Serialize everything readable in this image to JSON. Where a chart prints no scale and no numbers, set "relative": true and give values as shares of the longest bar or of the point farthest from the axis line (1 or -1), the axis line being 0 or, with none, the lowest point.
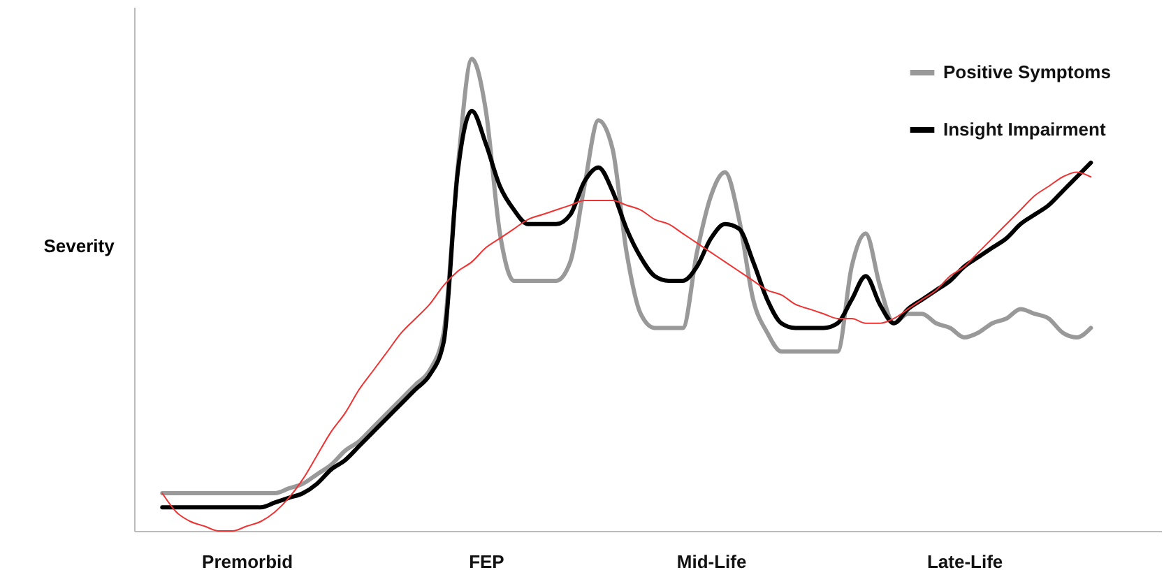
{
  "chart_data": {
    "type": "line",
    "relative": true,
    "ylabel": "Severity",
    "categories": [
      null,
      null,
      null,
      null,
      null,
      null,
      null,
      null,
      "Premorbid",
      null,
      null,
      null,
      null,
      null,
      null,
      null,
      null,
      null,
      null,
      null,
      null,
      null,
      null,
      null,
      null,
      "FEP",
      null,
      null,
      null,
      null,
      null,
      null,
      null,
      null,
      null,
      null,
      null,
      null,
      null,
      null,
      null,
      "Mid-Life",
      null,
      null,
      null,
      null,
      null,
      null,
      null,
      null,
      null,
      null,
      null,
      null,
      null,
      null,
      null,
      null,
      null,
      "Late-Life",
      null,
      null,
      null,
      null,
      null,
      null,
      null,
      null,
      null,
      null,
      null,
      null,
      null,
      null
    ],
    "tick_labels": "x",
    "legend": "top right",
    "series": [
      {
        "name": "Positive Symptoms",
        "color": "#999999",
        "values": [
          null,
          null,
          0.08,
          0.08,
          0.08,
          0.08,
          0.08,
          0.08,
          0.08,
          0.08,
          0.08,
          0.09,
          0.1,
          0.12,
          0.14,
          0.17,
          0.19,
          0.22,
          0.25,
          0.28,
          0.31,
          0.34,
          0.42,
          0.77,
          1.0,
          0.89,
          0.63,
          0.53,
          0.53,
          0.53,
          0.53,
          0.57,
          0.73,
          0.87,
          0.81,
          0.59,
          0.46,
          0.43,
          0.43,
          0.43,
          0.59,
          0.71,
          0.76,
          0.66,
          0.49,
          0.42,
          0.38,
          0.38,
          0.38,
          0.38,
          0.38,
          0.56,
          0.63,
          0.52,
          0.44,
          0.46,
          0.46,
          0.44,
          0.43,
          0.41,
          0.42,
          0.44,
          0.45,
          0.47,
          0.46,
          0.45,
          0.42,
          0.41,
          0.43,
          null,
          null,
          null,
          null,
          null
        ]
      },
      {
        "name": "Insight Impairment",
        "color": "#000000",
        "values": [
          null,
          null,
          0.05,
          0.05,
          0.05,
          0.05,
          0.05,
          0.05,
          0.05,
          0.05,
          0.06,
          0.07,
          0.08,
          0.1,
          0.13,
          0.15,
          0.18,
          0.21,
          0.24,
          0.27,
          0.3,
          0.33,
          0.4,
          0.76,
          0.89,
          0.82,
          0.73,
          0.68,
          0.65,
          0.65,
          0.65,
          0.67,
          0.74,
          0.77,
          0.72,
          0.64,
          0.58,
          0.54,
          0.53,
          0.53,
          0.56,
          0.62,
          0.65,
          0.64,
          0.57,
          0.49,
          0.44,
          0.43,
          0.43,
          0.43,
          0.44,
          0.49,
          0.54,
          0.48,
          0.44,
          0.47,
          0.49,
          0.51,
          0.53,
          0.56,
          0.58,
          0.6,
          0.62,
          0.65,
          0.67,
          0.69,
          0.72,
          0.75,
          0.78,
          null,
          null,
          null,
          null,
          null
        ]
      },
      {
        "type": "line",
        "color": "#ee3333",
        "values": [
          null,
          null,
          0.08,
          0.04,
          0.02,
          0.01,
          0,
          0,
          0.01,
          0.02,
          0.04,
          0.07,
          0.11,
          0.16,
          0.21,
          0.25,
          0.3,
          0.34,
          0.38,
          0.42,
          0.45,
          0.48,
          0.52,
          0.55,
          0.57,
          0.6,
          0.62,
          0.64,
          0.66,
          0.67,
          0.68,
          0.69,
          0.7,
          0.7,
          0.7,
          0.69,
          0.68,
          0.66,
          0.65,
          0.63,
          0.61,
          0.59,
          0.57,
          0.55,
          0.53,
          0.51,
          0.5,
          0.48,
          0.47,
          0.46,
          0.45,
          0.45,
          0.44,
          0.44,
          0.45,
          0.47,
          0.49,
          0.51,
          0.54,
          0.56,
          0.59,
          0.62,
          0.65,
          0.68,
          0.71,
          0.73,
          0.75,
          0.76,
          0.75,
          null,
          null,
          null,
          null,
          null
        ]
      }
    ]
  }
}
